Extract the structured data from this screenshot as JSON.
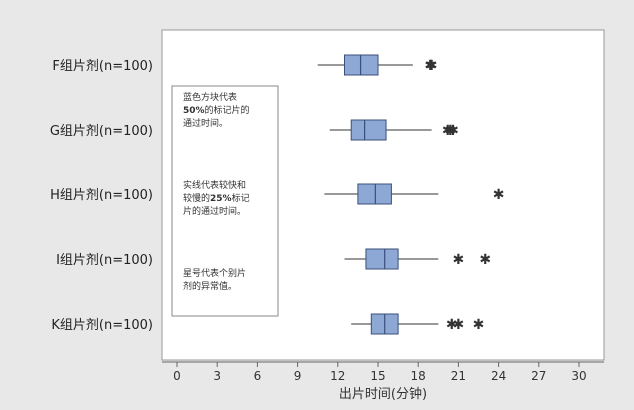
{
  "chart_data": {
    "type": "boxplot",
    "orientation": "horizontal",
    "xlabel": "出片时间(分钟)",
    "xlim": [
      0,
      30
    ],
    "xticks": [
      0,
      3,
      6,
      9,
      12,
      15,
      18,
      21,
      24,
      27,
      30
    ],
    "categories": [
      "F组片剂(n=100)",
      "G组片剂(n=100)",
      "H组片剂(n=100)",
      "I组片剂(n=100)",
      "K组片剂(n=100)"
    ],
    "series": [
      {
        "category": "F组片剂(n=100)",
        "whisker_low": 10.5,
        "q1": 12.5,
        "median": 13.7,
        "q3": 15.0,
        "whisker_high": 17.6,
        "outliers": [
          18.9,
          19.0
        ]
      },
      {
        "category": "G组片剂(n=100)",
        "whisker_low": 11.4,
        "q1": 13.0,
        "median": 14.0,
        "q3": 15.6,
        "whisker_high": 19.0,
        "outliers": [
          20.2,
          20.4,
          20.6
        ]
      },
      {
        "category": "H组片剂(n=100)",
        "whisker_low": 11.0,
        "q1": 13.5,
        "median": 14.8,
        "q3": 16.0,
        "whisker_high": 19.5,
        "outliers": [
          24.0
        ]
      },
      {
        "category": "I组片剂(n=100)",
        "whisker_low": 12.5,
        "q1": 14.1,
        "median": 15.5,
        "q3": 16.5,
        "whisker_high": 19.5,
        "outliers": [
          21.0,
          23.0
        ]
      },
      {
        "category": "K组片剂(n=100)",
        "whisker_low": 13.0,
        "q1": 14.5,
        "median": 15.5,
        "q3": 16.5,
        "whisker_high": 19.5,
        "outliers": [
          20.5,
          21.0,
          22.5
        ]
      }
    ],
    "colors": {
      "box_fill": "#8da8d4",
      "box_stroke": "#3a4f7a",
      "line": "#333333",
      "outlier": "#333333"
    },
    "outlier_marker": "asterisk",
    "grid": false,
    "annotation_lines": [
      [
        {
          "parts": [
            {
              "text": "蓝色方块代表",
              "bold": false
            }
          ]
        },
        {
          "parts": [
            {
              "text": "50%",
              "bold": true
            },
            {
              "text": "的标记片的",
              "bold": false
            }
          ]
        },
        {
          "parts": [
            {
              "text": "通过时间。",
              "bold": false
            }
          ]
        }
      ],
      [
        {
          "parts": [
            {
              "text": "实线代表较快和",
              "bold": false
            }
          ]
        },
        {
          "parts": [
            {
              "text": "较慢的",
              "bold": false
            },
            {
              "text": "25%",
              "bold": true
            },
            {
              "text": "标记",
              "bold": false
            }
          ]
        },
        {
          "parts": [
            {
              "text": "片的通过时间。",
              "bold": false
            }
          ]
        }
      ],
      [
        {
          "parts": [
            {
              "text": "星号代表个别片",
              "bold": false
            }
          ]
        },
        {
          "parts": [
            {
              "text": "剂的异常值。",
              "bold": false
            }
          ]
        }
      ]
    ]
  }
}
